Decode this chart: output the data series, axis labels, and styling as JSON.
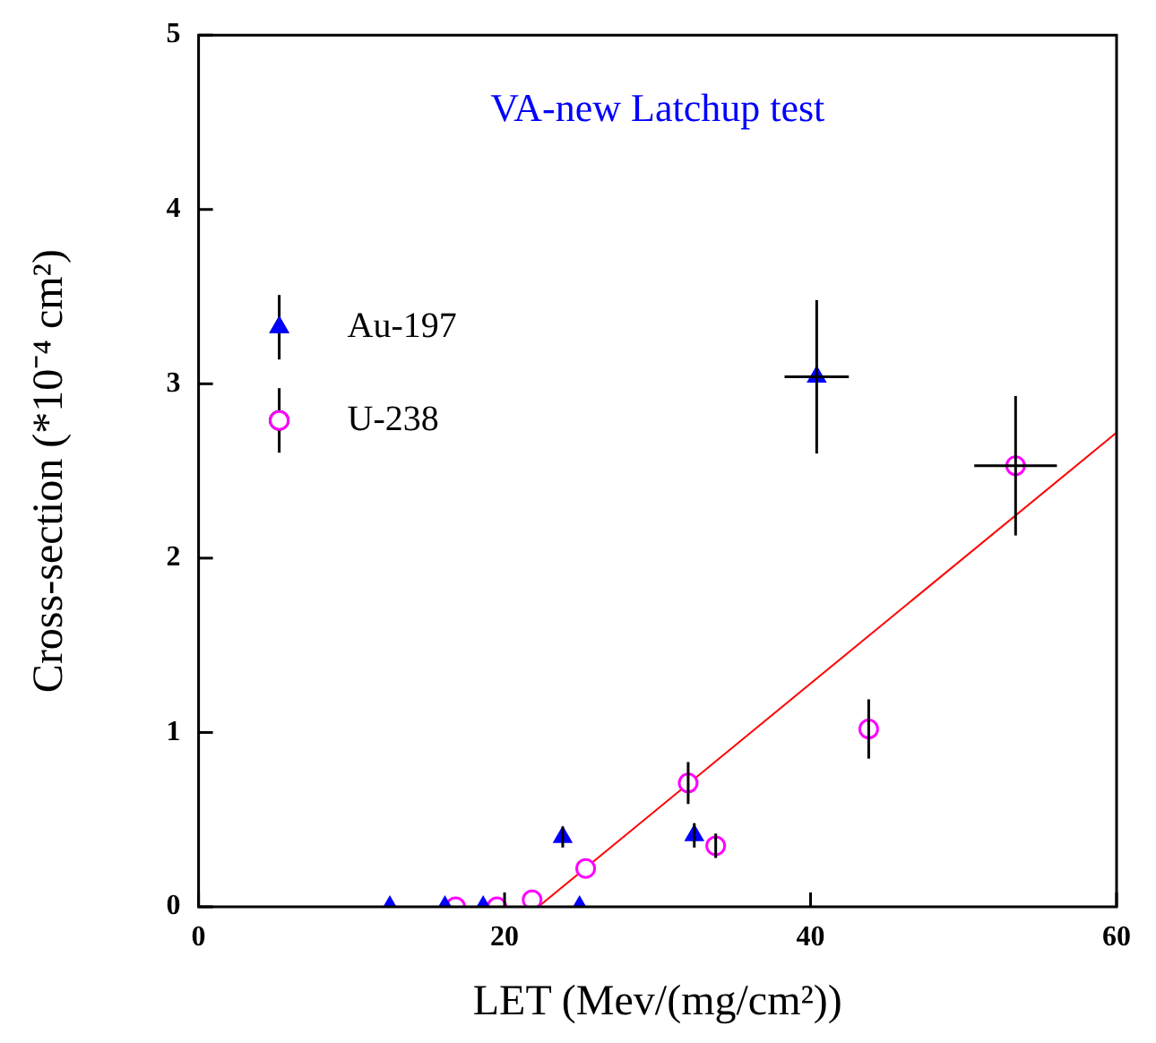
{
  "chart_data": {
    "type": "scatter",
    "title": "VA-new Latchup test",
    "xlabel": "LET (Mev/(mg/cm²))",
    "ylabel": "Cross-section (*10⁻⁴ cm²)",
    "xlim": [
      0,
      60
    ],
    "ylim": [
      0,
      5
    ],
    "xticks": [
      0,
      20,
      40,
      60
    ],
    "yticks": [
      0,
      1,
      2,
      3,
      4,
      5
    ],
    "grid": false,
    "legend": "top left",
    "series": [
      {
        "name": "Au-197",
        "color": "#0000ff",
        "marker": "triangle",
        "x": [
          12.5,
          16.1,
          18.6,
          23.8,
          24.9,
          32.4,
          40.4
        ],
        "values": [
          0,
          0,
          0,
          0.4,
          0,
          0.41,
          3.04
        ],
        "errors": [
          null,
          null,
          null,
          0.06,
          null,
          0.07,
          0.44
        ],
        "xerrors": [
          null,
          null,
          null,
          null,
          null,
          null,
          2.1
        ]
      },
      {
        "name": "U-238",
        "color": "#ff00ff",
        "marker": "circle",
        "x": [
          16.8,
          19.5,
          21.8,
          25.3,
          32.0,
          33.8,
          43.8,
          53.4
        ],
        "values": [
          0,
          0,
          0.04,
          0.22,
          0.71,
          0.35,
          1.02,
          2.53
        ],
        "errors": [
          null,
          null,
          null,
          null,
          0.12,
          0.07,
          0.17,
          0.4
        ],
        "xerrors": [
          null,
          null,
          null,
          null,
          null,
          null,
          null,
          2.7
        ]
      },
      {
        "type": "line",
        "color": "#ff0000",
        "marker": "none",
        "x": [
          22.2,
          60
        ],
        "values": [
          0,
          2.72
        ]
      }
    ]
  }
}
